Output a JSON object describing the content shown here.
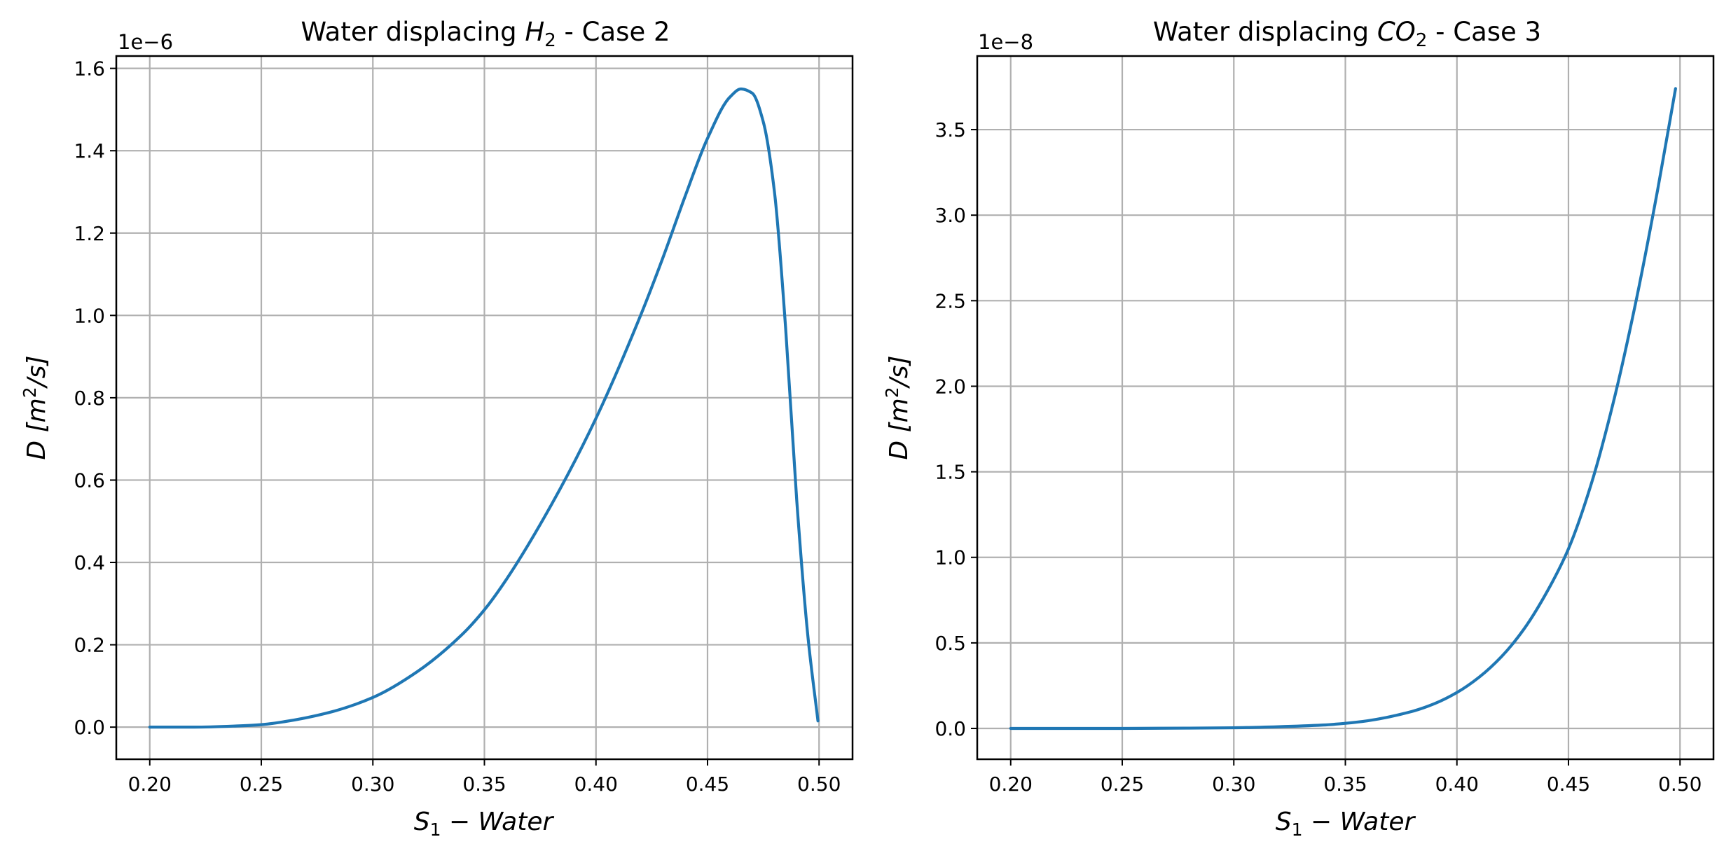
{
  "chart_data": [
    {
      "type": "line",
      "title": {
        "pre": "Water displacing ",
        "species": "H",
        "sub": "2",
        "post": " -  Case 2"
      },
      "xlabel": {
        "main": "S",
        "sub": "1",
        "rest": " − Water"
      },
      "ylabel": {
        "pre": "D  [m",
        "sup": "2",
        "post": "/s]"
      },
      "offset_text": "1e−6",
      "xlim": [
        0.185,
        0.515
      ],
      "ylim": [
        -0.078,
        1.63
      ],
      "xticks": [
        0.2,
        0.25,
        0.3,
        0.35,
        0.4,
        0.45,
        0.5
      ],
      "xtick_labels": [
        "0.20",
        "0.25",
        "0.30",
        "0.35",
        "0.40",
        "0.45",
        "0.50"
      ],
      "yticks": [
        0.0,
        0.2,
        0.4,
        0.6,
        0.8,
        1.0,
        1.2,
        1.4,
        1.6
      ],
      "ytick_labels": [
        "0.0",
        "0.2",
        "0.4",
        "0.6",
        "0.8",
        "1.0",
        "1.2",
        "1.4",
        "1.6"
      ],
      "grid": true,
      "color": "#1f77b4",
      "x": [
        0.2,
        0.22,
        0.24,
        0.25,
        0.26,
        0.28,
        0.3,
        0.32,
        0.34,
        0.35,
        0.36,
        0.38,
        0.4,
        0.42,
        0.43,
        0.44,
        0.45,
        0.46,
        0.465,
        0.47,
        0.475,
        0.48,
        0.485,
        0.49,
        0.495,
        0.4995
      ],
      "values": [
        0.0,
        0.0,
        0.003,
        0.006,
        0.013,
        0.035,
        0.072,
        0.135,
        0.225,
        0.285,
        0.36,
        0.54,
        0.75,
        1.0,
        1.14,
        1.29,
        1.43,
        1.53,
        1.55,
        1.54,
        1.47,
        1.3,
        0.97,
        0.55,
        0.22,
        0.015
      ]
    },
    {
      "type": "line",
      "title": {
        "pre": "Water displacing ",
        "species": "CO",
        "sub": "2",
        "post": " -  Case 3"
      },
      "xlabel": {
        "main": "S",
        "sub": "1",
        "rest": " − Water"
      },
      "ylabel": {
        "pre": "D  [m",
        "sup": "2",
        "post": "/s]"
      },
      "offset_text": "1e−8",
      "xlim": [
        0.185,
        0.515
      ],
      "ylim": [
        -0.18,
        3.93
      ],
      "xticks": [
        0.2,
        0.25,
        0.3,
        0.35,
        0.4,
        0.45,
        0.5
      ],
      "xtick_labels": [
        "0.20",
        "0.25",
        "0.30",
        "0.35",
        "0.40",
        "0.45",
        "0.50"
      ],
      "yticks": [
        0.0,
        0.5,
        1.0,
        1.5,
        2.0,
        2.5,
        3.0,
        3.5
      ],
      "ytick_labels": [
        "0.0",
        "0.5",
        "1.0",
        "1.5",
        "2.0",
        "2.5",
        "3.0",
        "3.5"
      ],
      "grid": true,
      "color": "#1f77b4",
      "x": [
        0.2,
        0.25,
        0.28,
        0.3,
        0.32,
        0.34,
        0.35,
        0.36,
        0.38,
        0.39,
        0.4,
        0.41,
        0.42,
        0.43,
        0.44,
        0.45,
        0.46,
        0.47,
        0.48,
        0.49,
        0.498
      ],
      "values": [
        0.0,
        0.0,
        0.002,
        0.004,
        0.01,
        0.02,
        0.03,
        0.045,
        0.1,
        0.145,
        0.21,
        0.3,
        0.42,
        0.58,
        0.79,
        1.05,
        1.42,
        1.9,
        2.48,
        3.15,
        3.74
      ]
    }
  ]
}
